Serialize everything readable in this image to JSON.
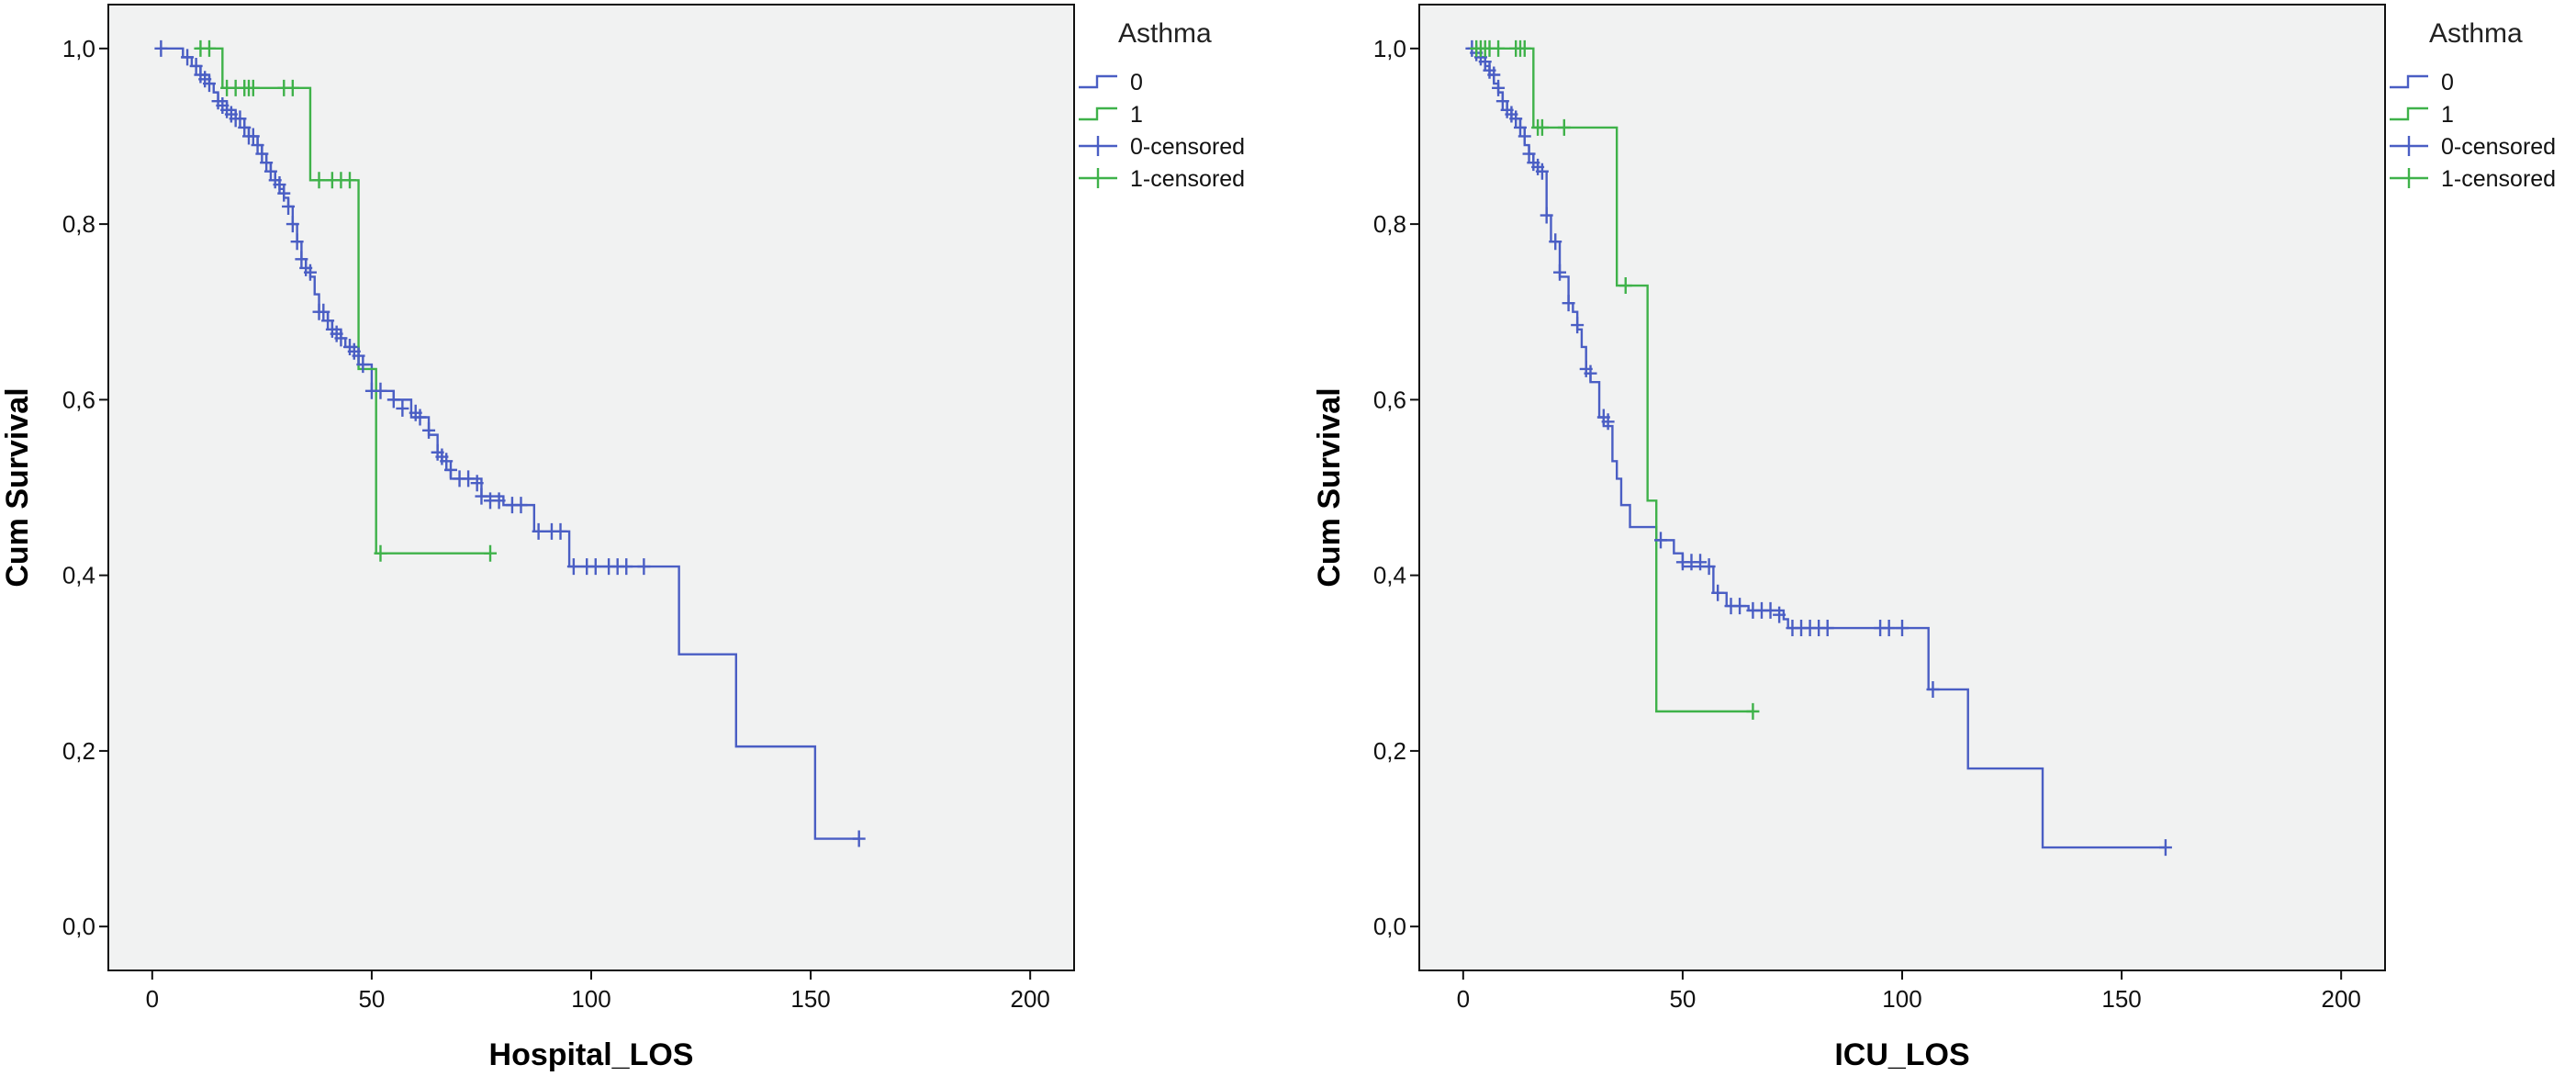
{
  "chart_data": [
    {
      "type": "line",
      "subtype": "kaplan-meier",
      "title": "",
      "xlabel": "Hospital_LOS",
      "ylabel": "Cum Survival",
      "xlim": [
        -10,
        210
      ],
      "ylim": [
        -0.05,
        1.05
      ],
      "xticks": [
        0,
        50,
        100,
        150,
        200
      ],
      "xtick_labels": [
        "0",
        "50",
        "100",
        "150",
        "200"
      ],
      "yticks": [
        0.0,
        0.2,
        0.4,
        0.6,
        0.8,
        1.0
      ],
      "ytick_labels": [
        "0,0",
        "0,2",
        "0,4",
        "0,6",
        "0,8",
        "1,0"
      ],
      "grid": false,
      "legend": {
        "title": "Asthma",
        "position": "right-outside",
        "entries": [
          {
            "label": "0",
            "kind": "line",
            "color": "#4a5ec4"
          },
          {
            "label": "1",
            "kind": "line",
            "color": "#3fb24a"
          },
          {
            "label": "0-censored",
            "kind": "censor",
            "color": "#4a5ec4"
          },
          {
            "label": "1-censored",
            "kind": "censor",
            "color": "#3fb24a"
          }
        ]
      },
      "series": [
        {
          "name": "0",
          "color": "#4a5ec4",
          "steps": [
            [
              2,
              1.0
            ],
            [
              7,
              0.99
            ],
            [
              9,
              0.98
            ],
            [
              11,
              0.97
            ],
            [
              13,
              0.96
            ],
            [
              14,
              0.95
            ],
            [
              15,
              0.94
            ],
            [
              17,
              0.93
            ],
            [
              19,
              0.92
            ],
            [
              21,
              0.91
            ],
            [
              22,
              0.9
            ],
            [
              24,
              0.89
            ],
            [
              25,
              0.88
            ],
            [
              26,
              0.87
            ],
            [
              27,
              0.86
            ],
            [
              28,
              0.85
            ],
            [
              29,
              0.84
            ],
            [
              30,
              0.83
            ],
            [
              31,
              0.82
            ],
            [
              32,
              0.8
            ],
            [
              33,
              0.78
            ],
            [
              34,
              0.76
            ],
            [
              35,
              0.75
            ],
            [
              36,
              0.74
            ],
            [
              37,
              0.72
            ],
            [
              38,
              0.7
            ],
            [
              40,
              0.69
            ],
            [
              41,
              0.68
            ],
            [
              43,
              0.67
            ],
            [
              44,
              0.66
            ],
            [
              47,
              0.64
            ],
            [
              50,
              0.61
            ],
            [
              55,
              0.6
            ],
            [
              59,
              0.58
            ],
            [
              63,
              0.56
            ],
            [
              65,
              0.54
            ],
            [
              66,
              0.53
            ],
            [
              67,
              0.52
            ],
            [
              68,
              0.51
            ],
            [
              75,
              0.49
            ],
            [
              80,
              0.48
            ],
            [
              87,
              0.45
            ],
            [
              95,
              0.41
            ],
            [
              120,
              0.31
            ],
            [
              133,
              0.205
            ],
            [
              151,
              0.1
            ],
            [
              161,
              0.1
            ]
          ],
          "censored": [
            [
              2,
              1.0
            ],
            [
              8,
              0.99
            ],
            [
              10,
              0.98
            ],
            [
              11,
              0.97
            ],
            [
              12,
              0.965
            ],
            [
              13,
              0.96
            ],
            [
              15,
              0.94
            ],
            [
              16,
              0.935
            ],
            [
              17,
              0.93
            ],
            [
              18,
              0.925
            ],
            [
              19,
              0.92
            ],
            [
              20,
              0.92
            ],
            [
              21,
              0.91
            ],
            [
              22,
              0.9
            ],
            [
              23,
              0.9
            ],
            [
              24,
              0.89
            ],
            [
              25,
              0.88
            ],
            [
              26,
              0.87
            ],
            [
              27,
              0.86
            ],
            [
              28,
              0.85
            ],
            [
              29,
              0.845
            ],
            [
              30,
              0.835
            ],
            [
              31,
              0.82
            ],
            [
              32,
              0.8
            ],
            [
              33,
              0.78
            ],
            [
              34,
              0.76
            ],
            [
              35,
              0.75
            ],
            [
              36,
              0.745
            ],
            [
              38,
              0.7
            ],
            [
              39,
              0.7
            ],
            [
              40,
              0.69
            ],
            [
              41,
              0.68
            ],
            [
              42,
              0.675
            ],
            [
              43,
              0.67
            ],
            [
              45,
              0.66
            ],
            [
              46,
              0.655
            ],
            [
              47,
              0.65
            ],
            [
              48,
              0.64
            ],
            [
              50,
              0.61
            ],
            [
              52,
              0.61
            ],
            [
              55,
              0.6
            ],
            [
              57,
              0.59
            ],
            [
              60,
              0.585
            ],
            [
              61,
              0.58
            ],
            [
              63,
              0.565
            ],
            [
              65,
              0.54
            ],
            [
              66,
              0.535
            ],
            [
              67,
              0.53
            ],
            [
              68,
              0.52
            ],
            [
              70,
              0.51
            ],
            [
              72,
              0.51
            ],
            [
              74,
              0.505
            ],
            [
              75,
              0.49
            ],
            [
              77,
              0.485
            ],
            [
              79,
              0.485
            ],
            [
              82,
              0.48
            ],
            [
              84,
              0.48
            ],
            [
              88,
              0.45
            ],
            [
              91,
              0.45
            ],
            [
              93,
              0.45
            ],
            [
              96,
              0.41
            ],
            [
              99,
              0.41
            ],
            [
              101,
              0.41
            ],
            [
              104,
              0.41
            ],
            [
              106,
              0.41
            ],
            [
              108,
              0.41
            ],
            [
              112,
              0.41
            ],
            [
              161,
              0.1
            ]
          ]
        },
        {
          "name": "1",
          "color": "#3fb24a",
          "steps": [
            [
              10,
              1.0
            ],
            [
              16,
              0.955
            ],
            [
              36,
              0.85
            ],
            [
              47,
              0.635
            ],
            [
              51,
              0.425
            ],
            [
              77,
              0.425
            ]
          ],
          "censored": [
            [
              11,
              1.0
            ],
            [
              13,
              1.0
            ],
            [
              17,
              0.955
            ],
            [
              19,
              0.955
            ],
            [
              21,
              0.955
            ],
            [
              22,
              0.955
            ],
            [
              23,
              0.955
            ],
            [
              30,
              0.955
            ],
            [
              32,
              0.955
            ],
            [
              38,
              0.85
            ],
            [
              41,
              0.85
            ],
            [
              43,
              0.85
            ],
            [
              45,
              0.85
            ],
            [
              52,
              0.425
            ],
            [
              77,
              0.425
            ]
          ]
        }
      ]
    },
    {
      "type": "line",
      "subtype": "kaplan-meier",
      "title": "",
      "xlabel": "ICU_LOS",
      "ylabel": "Cum Survival",
      "xlim": [
        -10,
        210
      ],
      "ylim": [
        -0.05,
        1.05
      ],
      "xticks": [
        0,
        50,
        100,
        150,
        200
      ],
      "xtick_labels": [
        "0",
        "50",
        "100",
        "150",
        "200"
      ],
      "yticks": [
        0.0,
        0.2,
        0.4,
        0.6,
        0.8,
        1.0
      ],
      "ytick_labels": [
        "0,0",
        "0,2",
        "0,4",
        "0,6",
        "0,8",
        "1,0"
      ],
      "grid": false,
      "legend": {
        "title": "Asthma",
        "position": "right-outside",
        "entries": [
          {
            "label": "0",
            "kind": "line",
            "color": "#4a5ec4"
          },
          {
            "label": "1",
            "kind": "line",
            "color": "#3fb24a"
          },
          {
            "label": "0-censored",
            "kind": "censor",
            "color": "#4a5ec4"
          },
          {
            "label": "1-censored",
            "kind": "censor",
            "color": "#3fb24a"
          }
        ]
      },
      "series": [
        {
          "name": "0",
          "color": "#4a5ec4",
          "steps": [
            [
              1,
              1.0
            ],
            [
              4,
              0.99
            ],
            [
              5,
              0.98
            ],
            [
              6,
              0.97
            ],
            [
              7,
              0.96
            ],
            [
              8,
              0.95
            ],
            [
              9,
              0.94
            ],
            [
              10,
              0.93
            ],
            [
              11,
              0.92
            ],
            [
              13,
              0.91
            ],
            [
              14,
              0.89
            ],
            [
              15,
              0.88
            ],
            [
              16,
              0.87
            ],
            [
              17,
              0.86
            ],
            [
              19,
              0.81
            ],
            [
              20,
              0.78
            ],
            [
              22,
              0.74
            ],
            [
              24,
              0.71
            ],
            [
              25,
              0.7
            ],
            [
              26,
              0.68
            ],
            [
              27,
              0.66
            ],
            [
              28,
              0.63
            ],
            [
              29,
              0.62
            ],
            [
              31,
              0.58
            ],
            [
              32,
              0.57
            ],
            [
              34,
              0.53
            ],
            [
              35,
              0.51
            ],
            [
              36,
              0.48
            ],
            [
              38,
              0.455
            ],
            [
              44,
              0.44
            ],
            [
              48,
              0.425
            ],
            [
              50,
              0.41
            ],
            [
              57,
              0.38
            ],
            [
              60,
              0.365
            ],
            [
              65,
              0.36
            ],
            [
              73,
              0.35
            ],
            [
              74,
              0.34
            ],
            [
              106,
              0.27
            ],
            [
              115,
              0.18
            ],
            [
              132,
              0.09
            ],
            [
              160,
              0.09
            ]
          ],
          "censored": [
            [
              2,
              1.0
            ],
            [
              3,
              0.995
            ],
            [
              4,
              0.99
            ],
            [
              5,
              0.985
            ],
            [
              6,
              0.975
            ],
            [
              7,
              0.97
            ],
            [
              8,
              0.955
            ],
            [
              9,
              0.94
            ],
            [
              10,
              0.93
            ],
            [
              11,
              0.925
            ],
            [
              12,
              0.92
            ],
            [
              13,
              0.91
            ],
            [
              14,
              0.9
            ],
            [
              15,
              0.88
            ],
            [
              16,
              0.87
            ],
            [
              17,
              0.865
            ],
            [
              18,
              0.86
            ],
            [
              19,
              0.81
            ],
            [
              21,
              0.78
            ],
            [
              22,
              0.745
            ],
            [
              24,
              0.71
            ],
            [
              26,
              0.685
            ],
            [
              28,
              0.635
            ],
            [
              29,
              0.63
            ],
            [
              32,
              0.58
            ],
            [
              33,
              0.575
            ],
            [
              45,
              0.44
            ],
            [
              50,
              0.415
            ],
            [
              52,
              0.415
            ],
            [
              54,
              0.415
            ],
            [
              56,
              0.41
            ],
            [
              58,
              0.38
            ],
            [
              61,
              0.365
            ],
            [
              63,
              0.365
            ],
            [
              66,
              0.36
            ],
            [
              68,
              0.36
            ],
            [
              70,
              0.36
            ],
            [
              72,
              0.355
            ],
            [
              75,
              0.34
            ],
            [
              77,
              0.34
            ],
            [
              79,
              0.34
            ],
            [
              81,
              0.34
            ],
            [
              83,
              0.34
            ],
            [
              95,
              0.34
            ],
            [
              97,
              0.34
            ],
            [
              100,
              0.34
            ],
            [
              107,
              0.27
            ],
            [
              160,
              0.09
            ]
          ]
        },
        {
          "name": "1",
          "color": "#3fb24a",
          "steps": [
            [
              2,
              1.0
            ],
            [
              16,
              0.91
            ],
            [
              35,
              0.73
            ],
            [
              42,
              0.485
            ],
            [
              44,
              0.245
            ],
            [
              66,
              0.245
            ]
          ],
          "censored": [
            [
              3,
              1.0
            ],
            [
              4,
              1.0
            ],
            [
              5,
              1.0
            ],
            [
              6,
              1.0
            ],
            [
              8,
              1.0
            ],
            [
              12,
              1.0
            ],
            [
              13,
              1.0
            ],
            [
              14,
              1.0
            ],
            [
              17,
              0.91
            ],
            [
              18,
              0.91
            ],
            [
              23,
              0.91
            ],
            [
              37,
              0.73
            ],
            [
              66,
              0.245
            ]
          ]
        }
      ]
    }
  ]
}
